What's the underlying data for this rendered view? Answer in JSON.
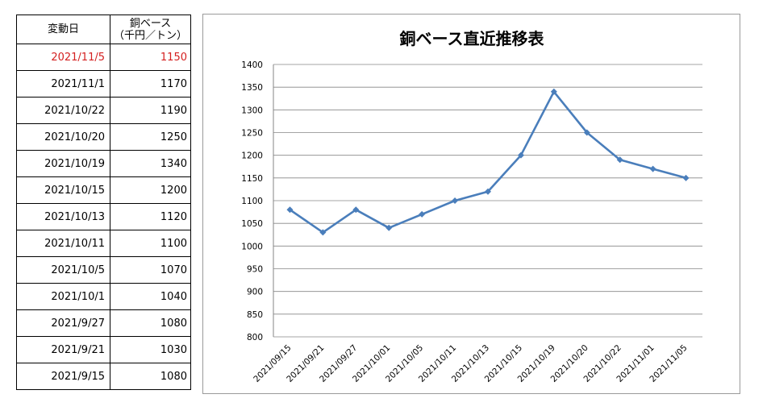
{
  "table": {
    "header_date": "変動日",
    "header_price_line1": "銅ベース",
    "header_price_line2": "（千円／トン）",
    "latest_color": "#d42020",
    "rows": [
      {
        "date": "2021/11/5",
        "price": "1150"
      },
      {
        "date": "2021/11/1",
        "price": "1170"
      },
      {
        "date": "2021/10/22",
        "price": "1190"
      },
      {
        "date": "2021/10/20",
        "price": "1250"
      },
      {
        "date": "2021/10/19",
        "price": "1340"
      },
      {
        "date": "2021/10/15",
        "price": "1200"
      },
      {
        "date": "2021/10/13",
        "price": "1120"
      },
      {
        "date": "2021/10/11",
        "price": "1100"
      },
      {
        "date": "2021/10/5",
        "price": "1070"
      },
      {
        "date": "2021/10/1",
        "price": "1040"
      },
      {
        "date": "2021/9/27",
        "price": "1080"
      },
      {
        "date": "2021/9/21",
        "price": "1030"
      },
      {
        "date": "2021/9/15",
        "price": "1080"
      }
    ]
  },
  "chart_data": {
    "type": "line",
    "title": "銅ベース直近推移表",
    "xlabel": "",
    "ylabel": "",
    "categories": [
      "2021/09/15",
      "2021/09/21",
      "2021/09/27",
      "2021/10/01",
      "2021/10/05",
      "2021/10/11",
      "2021/10/13",
      "2021/10/15",
      "2021/10/19",
      "2021/10/20",
      "2021/10/22",
      "2021/11/01",
      "2021/11/05"
    ],
    "series": [
      {
        "values": [
          1080,
          1030,
          1080,
          1040,
          1070,
          1100,
          1120,
          1200,
          1340,
          1250,
          1190,
          1170,
          1150
        ],
        "color": "#4a7ebb"
      }
    ],
    "ylim": [
      800,
      1400
    ],
    "yticks": [
      800,
      850,
      900,
      950,
      1000,
      1050,
      1100,
      1150,
      1200,
      1250,
      1300,
      1350,
      1400
    ],
    "grid": "horizontal",
    "marker": "diamond",
    "legend": "none"
  }
}
